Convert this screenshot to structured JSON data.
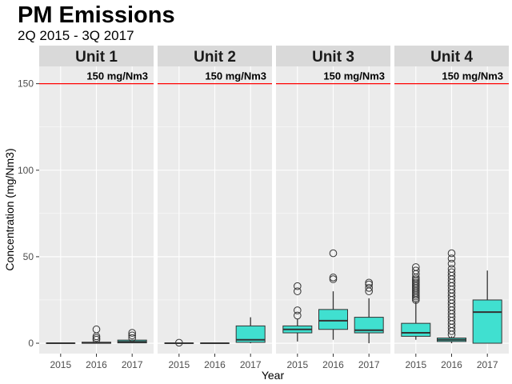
{
  "chart_data": {
    "type": "boxplot",
    "title": "PM Emissions",
    "subtitle": "2Q 2015 - 3Q 2017",
    "xlabel": "Year",
    "ylabel": "Concentration (mg/Nm3)",
    "ylim": [
      -6,
      160
    ],
    "yticks": [
      0,
      50,
      100,
      150
    ],
    "categories": [
      "2015",
      "2016",
      "2017"
    ],
    "reference_line": {
      "value": 150,
      "label": "150 mg/Nm3",
      "color": "#ff0000"
    },
    "colors": {
      "box_fill": "#40e0d0",
      "panel_bg": "#ebebeb",
      "strip_bg": "#d9d9d9",
      "grid": "#ffffff"
    },
    "grid": true,
    "facets": [
      {
        "label": "Unit 1",
        "boxes": [
          {
            "x": "2015",
            "min": 0,
            "q1": 0,
            "median": 0,
            "q3": 0,
            "max": 0,
            "outliers": []
          },
          {
            "x": "2016",
            "min": 0,
            "q1": 0,
            "median": 0.2,
            "q3": 0.6,
            "max": 1.2,
            "outliers": [
              2,
              3,
              4,
              8
            ]
          },
          {
            "x": "2017",
            "min": 0,
            "q1": 0.2,
            "median": 0.8,
            "q3": 1.8,
            "max": 2,
            "outliers": [
              3,
              4.5,
              6
            ]
          }
        ]
      },
      {
        "label": "Unit 2",
        "boxes": [
          {
            "x": "2015",
            "min": 0,
            "q1": 0,
            "median": 0,
            "q3": 0,
            "max": 0,
            "outliers": [
              0.3
            ]
          },
          {
            "x": "2016",
            "min": 0,
            "q1": 0,
            "median": 0,
            "q3": 0,
            "max": 0,
            "outliers": []
          },
          {
            "x": "2017",
            "min": 0,
            "q1": 0.5,
            "median": 2,
            "q3": 10,
            "max": 15,
            "outliers": []
          }
        ]
      },
      {
        "label": "Unit 3",
        "boxes": [
          {
            "x": "2015",
            "min": 1,
            "q1": 6,
            "median": 8,
            "q3": 10,
            "max": 14,
            "outliers": [
              16,
              19,
              30,
              33
            ]
          },
          {
            "x": "2016",
            "min": 2,
            "q1": 8,
            "median": 13,
            "q3": 19.5,
            "max": 30,
            "outliers": [
              37,
              38,
              52
            ]
          },
          {
            "x": "2017",
            "min": 0,
            "q1": 6,
            "median": 7.5,
            "q3": 15,
            "max": 26,
            "outliers": [
              30,
              32,
              34,
              35
            ]
          }
        ]
      },
      {
        "label": "Unit 4",
        "boxes": [
          {
            "x": "2015",
            "min": 2,
            "q1": 4,
            "median": 6,
            "q3": 11.5,
            "max": 24,
            "outliers": [
              25,
              26,
              27,
              28,
              29,
              30,
              31,
              32,
              33,
              34,
              35,
              36,
              37,
              38,
              40,
              42,
              44
            ]
          },
          {
            "x": "2016",
            "min": 0,
            "q1": 1,
            "median": 2,
            "q3": 3,
            "max": 4,
            "outliers": [
              5,
              7,
              9,
              11,
              13,
              15,
              17,
              19,
              21,
              23,
              25,
              27,
              29,
              31,
              33,
              35,
              37,
              39,
              41,
              43,
              46,
              49,
              52
            ]
          },
          {
            "x": "2017",
            "min": 0,
            "q1": 0,
            "median": 18,
            "q3": 25,
            "max": 42,
            "outliers": []
          }
        ]
      }
    ]
  }
}
